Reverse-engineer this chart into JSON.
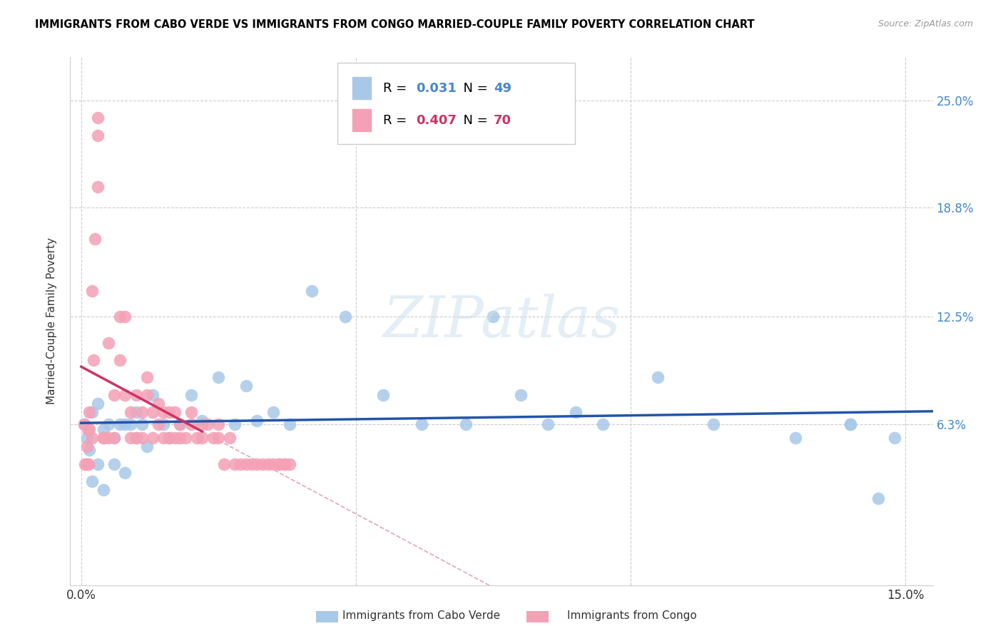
{
  "title": "IMMIGRANTS FROM CABO VERDE VS IMMIGRANTS FROM CONGO MARRIED-COUPLE FAMILY POVERTY CORRELATION CHART",
  "source": "Source: ZipAtlas.com",
  "ylabel": "Married-Couple Family Poverty",
  "ytick_values": [
    0.063,
    0.125,
    0.188,
    0.25
  ],
  "ytick_labels": [
    "6.3%",
    "12.5%",
    "18.8%",
    "25.0%"
  ],
  "xlim_min": -0.002,
  "xlim_max": 0.155,
  "ylim_min": -0.03,
  "ylim_max": 0.275,
  "cabo_verde_color": "#a8c8e8",
  "congo_color": "#f4a0b5",
  "cabo_verde_line_color": "#2255aa",
  "congo_line_color": "#cc3366",
  "cabo_verde_R": "0.031",
  "cabo_verde_N": "49",
  "congo_R": "0.407",
  "congo_N": "70",
  "watermark": "ZIPatlas",
  "legend1_label": "Immigrants from Cabo Verde",
  "legend2_label": "Immigrants from Congo",
  "cabo_verde_x": [
    0.0005,
    0.001,
    0.0015,
    0.002,
    0.002,
    0.003,
    0.003,
    0.004,
    0.004,
    0.005,
    0.006,
    0.006,
    0.007,
    0.008,
    0.008,
    0.009,
    0.01,
    0.01,
    0.011,
    0.012,
    0.013,
    0.015,
    0.016,
    0.018,
    0.02,
    0.022,
    0.025,
    0.028,
    0.03,
    0.032,
    0.035,
    0.038,
    0.042,
    0.048,
    0.055,
    0.062,
    0.07,
    0.075,
    0.08,
    0.085,
    0.09,
    0.095,
    0.105,
    0.115,
    0.13,
    0.14,
    0.14,
    0.145,
    0.148
  ],
  "cabo_verde_y": [
    0.063,
    0.055,
    0.048,
    0.07,
    0.03,
    0.04,
    0.075,
    0.06,
    0.025,
    0.063,
    0.055,
    0.04,
    0.063,
    0.035,
    0.063,
    0.063,
    0.07,
    0.055,
    0.063,
    0.05,
    0.08,
    0.063,
    0.055,
    0.063,
    0.08,
    0.065,
    0.09,
    0.063,
    0.085,
    0.065,
    0.07,
    0.063,
    0.14,
    0.125,
    0.08,
    0.063,
    0.063,
    0.125,
    0.08,
    0.063,
    0.07,
    0.063,
    0.09,
    0.063,
    0.055,
    0.063,
    0.063,
    0.02,
    0.055
  ],
  "congo_x": [
    0.0005,
    0.0007,
    0.001,
    0.001,
    0.0012,
    0.0013,
    0.0015,
    0.0015,
    0.002,
    0.002,
    0.0022,
    0.0025,
    0.003,
    0.003,
    0.003,
    0.004,
    0.004,
    0.005,
    0.005,
    0.006,
    0.006,
    0.007,
    0.007,
    0.008,
    0.008,
    0.009,
    0.009,
    0.01,
    0.01,
    0.011,
    0.011,
    0.012,
    0.012,
    0.013,
    0.013,
    0.014,
    0.014,
    0.015,
    0.015,
    0.016,
    0.016,
    0.017,
    0.017,
    0.018,
    0.018,
    0.019,
    0.02,
    0.02,
    0.021,
    0.022,
    0.022,
    0.023,
    0.024,
    0.025,
    0.025,
    0.026,
    0.027,
    0.028,
    0.029,
    0.03,
    0.031,
    0.032,
    0.033,
    0.034,
    0.035,
    0.036,
    0.036,
    0.037,
    0.037,
    0.038
  ],
  "congo_y": [
    0.063,
    0.04,
    0.05,
    0.04,
    0.06,
    0.04,
    0.07,
    0.06,
    0.14,
    0.055,
    0.1,
    0.17,
    0.2,
    0.23,
    0.24,
    0.055,
    0.055,
    0.11,
    0.055,
    0.055,
    0.08,
    0.125,
    0.1,
    0.125,
    0.08,
    0.055,
    0.07,
    0.055,
    0.08,
    0.055,
    0.07,
    0.09,
    0.08,
    0.055,
    0.07,
    0.063,
    0.075,
    0.055,
    0.07,
    0.055,
    0.07,
    0.055,
    0.07,
    0.055,
    0.063,
    0.055,
    0.063,
    0.07,
    0.055,
    0.063,
    0.055,
    0.063,
    0.055,
    0.063,
    0.055,
    0.04,
    0.055,
    0.04,
    0.04,
    0.04,
    0.04,
    0.04,
    0.04,
    0.04,
    0.04,
    0.04,
    0.04,
    0.04,
    0.04,
    0.04
  ]
}
